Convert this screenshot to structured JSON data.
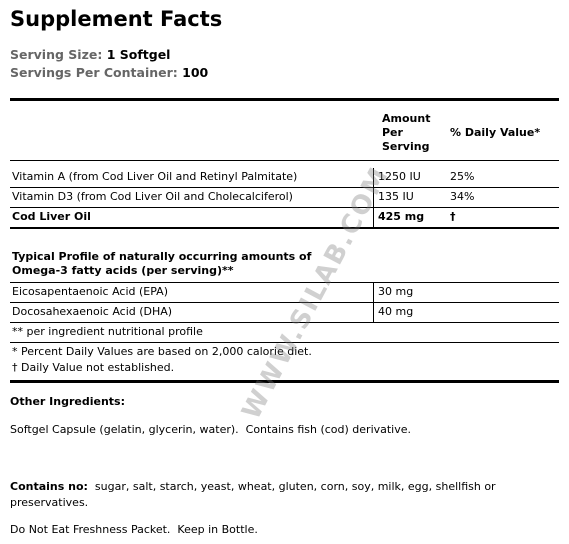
{
  "title": "Supplement Facts",
  "serving": {
    "size_label": "Serving Size:",
    "size": "1 Softgel",
    "container_label": "Servings Per Container:",
    "container": "100"
  },
  "table": {
    "header": [
      "Amount Per Serving",
      "% Daily Value*"
    ],
    "rows": [
      [
        "Vitamin A (from Cod Liver Oil and Retinyl Palmitate)",
        "1250 IU",
        "25%"
      ],
      [
        "Vitamin D3 (from Cod Liver Oil and Cholecalciferol)",
        "135 IU",
        "34%"
      ],
      [
        "Cod Liver Oil",
        "425 mg",
        "†"
      ]
    ],
    "profile_heading": "Typical Profile of naturally occurring amounts of Omega-3 fatty acids (per serving)**",
    "profile_rows": [
      [
        "Eicosapentaenoic Acid (EPA)",
        "30 mg"
      ],
      [
        "Docosahexaenoic Acid (DHA)",
        "40 mg"
      ]
    ],
    "footnotes": [
      "** per ingredient nutritional profile",
      "* Percent Daily Values are based on 2,000 calorie diet.",
      "† Daily Value not established."
    ]
  },
  "other_ingredients": {
    "label": "Other Ingredients:",
    "text": "Softgel Capsule (gelatin, glycerin, water).  Contains fish (cod) derivative."
  },
  "contains_no": {
    "label": "Contains no:",
    "text": "sugar, salt, starch, yeast, wheat, gluten, corn, soy, milk, egg, shellfish or preservatives."
  },
  "note": "Do Not Eat Freshness Packet.  Keep in Bottle.",
  "watermark": "WWW.SILAB.COM"
}
